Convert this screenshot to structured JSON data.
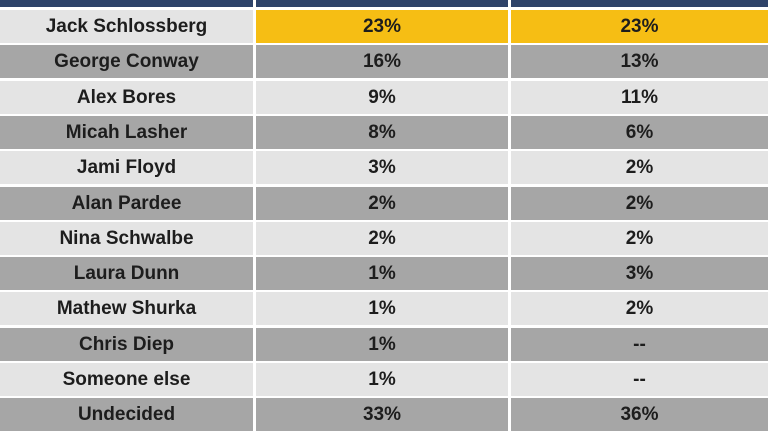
{
  "chart_data": {
    "type": "table",
    "rows": [
      {
        "name": "Jack Schlossberg",
        "v1": "23%",
        "v2": "23%"
      },
      {
        "name": "George Conway",
        "v1": "16%",
        "v2": "13%"
      },
      {
        "name": "Alex Bores",
        "v1": "9%",
        "v2": "11%"
      },
      {
        "name": "Micah Lasher",
        "v1": "8%",
        "v2": "6%"
      },
      {
        "name": "Jami Floyd",
        "v1": "3%",
        "v2": "2%"
      },
      {
        "name": "Alan Pardee",
        "v1": "2%",
        "v2": "2%"
      },
      {
        "name": "Nina Schwalbe",
        "v1": "2%",
        "v2": "2%"
      },
      {
        "name": "Laura Dunn",
        "v1": "1%",
        "v2": "3%"
      },
      {
        "name": "Mathew Shurka",
        "v1": "1%",
        "v2": "2%"
      },
      {
        "name": "Chris Diep",
        "v1": "1%",
        "v2": "--"
      },
      {
        "name": "Someone else",
        "v1": "1%",
        "v2": "--"
      },
      {
        "name": "Undecided",
        "v1": "33%",
        "v2": "36%"
      }
    ],
    "highlight_row": 0,
    "colors": {
      "header": "#2e4369",
      "row_light": "#e4e4e4",
      "row_dark": "#a6a6a6",
      "highlight": "#f6be14",
      "text": "#1d1d1d"
    }
  }
}
